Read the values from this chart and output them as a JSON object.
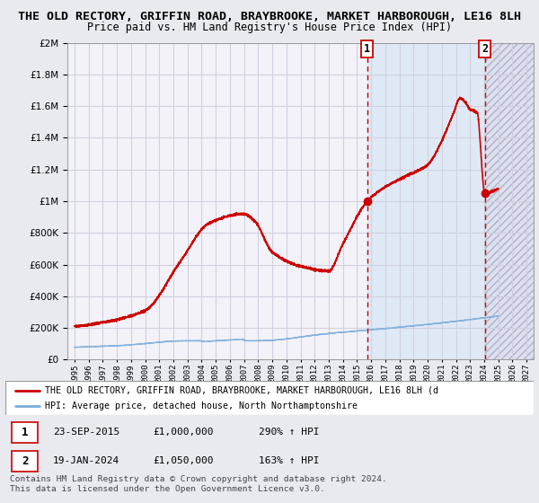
{
  "title": "THE OLD RECTORY, GRIFFIN ROAD, BRAYBROOKE, MARKET HARBOROUGH, LE16 8LH",
  "subtitle": "Price paid vs. HM Land Registry's House Price Index (HPI)",
  "title_fontsize": 9.5,
  "subtitle_fontsize": 8.5,
  "bg_color": "#e8eaf0",
  "plot_bg_color": "#f2f2f8",
  "grid_color": "#d0d0e0",
  "ylim": [
    0,
    2000000
  ],
  "yticks": [
    0,
    200000,
    400000,
    600000,
    800000,
    1000000,
    1200000,
    1400000,
    1600000,
    1800000,
    2000000
  ],
  "ytick_labels": [
    "£0",
    "£200K",
    "£400K",
    "£600K",
    "£800K",
    "£1M",
    "£1.2M",
    "£1.4M",
    "£1.6M",
    "£1.8M",
    "£2M"
  ],
  "hpi_color": "#7aaddd",
  "price_color": "#cc0000",
  "shade_color": "#dce8f5",
  "hatch_color": "#c8c8d8",
  "marker1_x": 2015.73,
  "marker2_x": 2024.05,
  "marker1_y": 1000000,
  "marker2_y": 1050000,
  "vline_color": "#cc0000",
  "legend_red_label": "THE OLD RECTORY, GRIFFIN ROAD, BRAYBROOKE, MARKET HARBOROUGH, LE16 8LH (d",
  "legend_blue_label": "HPI: Average price, detached house, North Northamptonshire",
  "table_row1": [
    "1",
    "23-SEP-2015",
    "£1,000,000",
    "290% ↑ HPI"
  ],
  "table_row2": [
    "2",
    "19-JAN-2024",
    "£1,050,000",
    "163% ↑ HPI"
  ],
  "footer": "Contains HM Land Registry data © Crown copyright and database right 2024.\nThis data is licensed under the Open Government Licence v3.0.",
  "xlim_left": 1994.5,
  "xlim_right": 2027.5
}
